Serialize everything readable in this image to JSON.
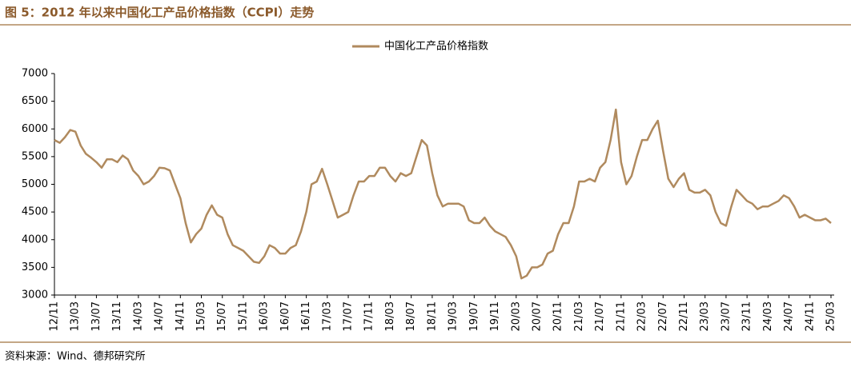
{
  "chart_data": {
    "type": "line",
    "title": "图 5：2012 年以来中国化工产品价格指数（CCPI）走势",
    "source": "资料来源：Wind、德邦研究所",
    "categories": [
      "12/11",
      null,
      null,
      null,
      "13/03",
      null,
      null,
      null,
      "13/07",
      null,
      null,
      null,
      "13/11",
      null,
      null,
      null,
      "14/03",
      null,
      null,
      null,
      "14/07",
      null,
      null,
      null,
      "14/11",
      null,
      null,
      null,
      "15/03",
      null,
      null,
      null,
      "15/07",
      null,
      null,
      null,
      "15/11",
      null,
      null,
      null,
      "16/03",
      null,
      null,
      null,
      "16/07",
      null,
      null,
      null,
      "16/11",
      null,
      null,
      null,
      "17/03",
      null,
      null,
      null,
      "17/07",
      null,
      null,
      null,
      "17/11",
      null,
      null,
      null,
      "18/03",
      null,
      null,
      null,
      "18/07",
      null,
      null,
      null,
      "18/11",
      null,
      null,
      null,
      "19/03",
      null,
      null,
      null,
      "19/07",
      null,
      null,
      null,
      "19/11",
      null,
      null,
      null,
      "20/03",
      null,
      null,
      null,
      "20/07",
      null,
      null,
      null,
      "20/11",
      null,
      null,
      null,
      "21/03",
      null,
      null,
      null,
      "21/07",
      null,
      null,
      null,
      "21/11",
      null,
      null,
      null,
      "22/03",
      null,
      null,
      null,
      "22/07",
      null,
      null,
      null,
      "22/11",
      null,
      null,
      null,
      "23/03",
      null,
      null,
      null,
      "23/07",
      null,
      null,
      null,
      "23/11",
      null,
      null,
      null,
      "24/03",
      null,
      null,
      null,
      "24/07",
      null,
      null,
      null,
      "24/11",
      null,
      null,
      null,
      "25/03"
    ],
    "series": [
      {
        "name": "中国化工产品价格指数",
        "color": "#b08a5e",
        "values": [
          5800,
          5750,
          5850,
          5980,
          5950,
          5700,
          5550,
          5480,
          5400,
          5300,
          5450,
          5450,
          5400,
          5520,
          5450,
          5250,
          5150,
          5000,
          5050,
          5150,
          5300,
          5290,
          5250,
          5000,
          4750,
          4300,
          3950,
          4100,
          4200,
          4450,
          4620,
          4450,
          4400,
          4100,
          3900,
          3850,
          3800,
          3700,
          3600,
          3580,
          3700,
          3900,
          3850,
          3750,
          3750,
          3850,
          3900,
          4150,
          4500,
          5000,
          5050,
          5280,
          5000,
          4700,
          4400,
          4450,
          4500,
          4800,
          5050,
          5050,
          5150,
          5150,
          5300,
          5300,
          5150,
          5050,
          5200,
          5150,
          5200,
          5500,
          5800,
          5700,
          5200,
          4800,
          4600,
          4650,
          4650,
          4650,
          4600,
          4350,
          4300,
          4300,
          4400,
          4250,
          4150,
          4100,
          4050,
          3900,
          3700,
          3300,
          3350,
          3500,
          3500,
          3550,
          3750,
          3800,
          4100,
          4300,
          4300,
          4600,
          5050,
          5050,
          5100,
          5050,
          5300,
          5400,
          5800,
          6350,
          5400,
          5000,
          5150,
          5500,
          5800,
          5800,
          6000,
          6150,
          5600,
          5100,
          4950,
          5100,
          5200,
          4900,
          4850,
          4850,
          4900,
          4800,
          4500,
          4300,
          4250,
          4600,
          4900,
          4800,
          4700,
          4650,
          4550,
          4600,
          4600,
          4650,
          4700,
          4800,
          4750,
          4600,
          4400,
          4450,
          4400,
          4350,
          4350,
          4380,
          4300
        ]
      }
    ],
    "ylim": [
      3000,
      7000
    ],
    "yticks": [
      3000,
      3500,
      4000,
      4500,
      5000,
      5500,
      6000,
      6500,
      7000
    ],
    "legend": "top"
  }
}
